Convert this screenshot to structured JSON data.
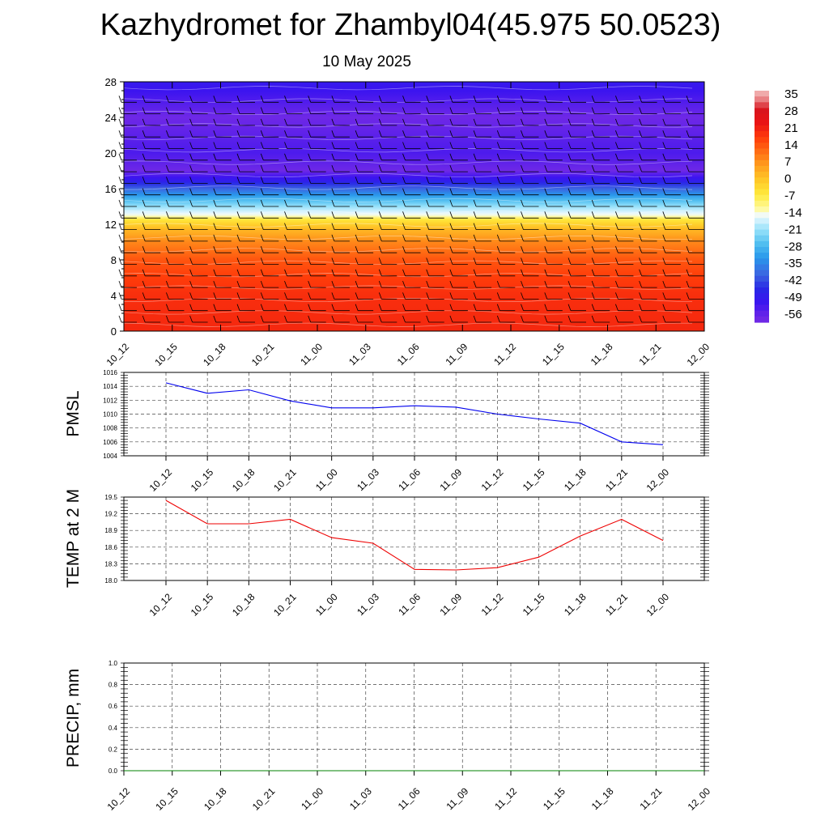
{
  "title": "Kazhydromet for Zhambyl04(45.975 50.0523)",
  "subtitle": "10 May 2025",
  "chart_data": [
    {
      "type": "heatmap",
      "x_ticks": [
        "10_12",
        "10_15",
        "10_18",
        "10_21",
        "11_00",
        "11_03",
        "11_06",
        "11_09",
        "11_12",
        "11_15",
        "11_18",
        "11_21",
        "12_00"
      ],
      "y_ticks": [
        0,
        4,
        8,
        12,
        16,
        20,
        24,
        28
      ],
      "ylim": [
        0,
        28
      ],
      "colorbar_labels": [
        "35",
        "28",
        "21",
        "14",
        "7",
        "0",
        "-7",
        "-14",
        "-21",
        "-28",
        "-35",
        "-42",
        "-49",
        "-56"
      ],
      "temperature_profile": [
        {
          "height": 0,
          "value": 21
        },
        {
          "height": 4,
          "value": 20
        },
        {
          "height": 6,
          "value": 18
        },
        {
          "height": 8,
          "value": 15
        },
        {
          "height": 10,
          "value": 9
        },
        {
          "height": 11.5,
          "value": 2
        },
        {
          "height": 12.5,
          "value": -5
        },
        {
          "height": 13,
          "value": -14
        },
        {
          "height": 14,
          "value": -21
        },
        {
          "height": 15,
          "value": -30
        },
        {
          "height": 16,
          "value": -40
        },
        {
          "height": 17,
          "value": -50
        },
        {
          "height": 18,
          "value": -58
        },
        {
          "height": 19,
          "value": -56
        },
        {
          "height": 20,
          "value": -54
        },
        {
          "height": 22,
          "value": -56
        },
        {
          "height": 24,
          "value": -58
        },
        {
          "height": 26,
          "value": -54
        },
        {
          "height": 28,
          "value": -50
        }
      ],
      "wind_barbs": "present"
    },
    {
      "type": "line",
      "ylabel": "PMSL",
      "x_ticks": [
        "10_12",
        "10_15",
        "10_18",
        "10_21",
        "11_00",
        "11_03",
        "11_06",
        "11_09",
        "11_12",
        "11_15",
        "11_18",
        "11_21",
        "12_00"
      ],
      "y_ticks": [
        1004,
        1006,
        1008,
        1010,
        1012,
        1014,
        1016
      ],
      "ylim": [
        1004,
        1016
      ],
      "series": [
        {
          "color": "#0000ee",
          "values": [
            1014.5,
            1013.0,
            1013.5,
            1011.9,
            1010.9,
            1010.9,
            1011.2,
            1011.0,
            1010.0,
            1009.3,
            1008.7,
            1006.0,
            1005.6
          ]
        }
      ]
    },
    {
      "type": "line",
      "ylabel": "TEMP at 2 M",
      "x_ticks": [
        "10_12",
        "10_15",
        "10_18",
        "10_21",
        "11_00",
        "11_03",
        "11_06",
        "11_09",
        "11_12",
        "11_15",
        "11_18",
        "11_21",
        "12_00"
      ],
      "y_ticks": [
        "18.0",
        "18.3",
        "18.6",
        "18.9",
        "19.2",
        "19.5"
      ],
      "ylim": [
        18.0,
        19.5
      ],
      "series": [
        {
          "color": "#ee0000",
          "values": [
            19.44,
            19.02,
            19.02,
            19.1,
            18.77,
            18.67,
            18.2,
            18.19,
            18.23,
            18.42,
            18.8,
            19.1,
            18.72
          ]
        }
      ]
    },
    {
      "type": "line",
      "ylabel": "PRECIP, mm",
      "x_ticks": [
        "10_12",
        "10_15",
        "10_18",
        "10_21",
        "11_00",
        "11_03",
        "11_06",
        "11_09",
        "11_12",
        "11_15",
        "11_18",
        "11_21",
        "12_00"
      ],
      "y_ticks": [
        "0.0",
        "0.2",
        "0.4",
        "0.6",
        "0.8",
        "1.0"
      ],
      "ylim": [
        0,
        1
      ],
      "series": [
        {
          "color": "#008000",
          "values": [
            0,
            0,
            0,
            0,
            0,
            0,
            0,
            0,
            0,
            0,
            0,
            0,
            0
          ]
        }
      ]
    }
  ]
}
